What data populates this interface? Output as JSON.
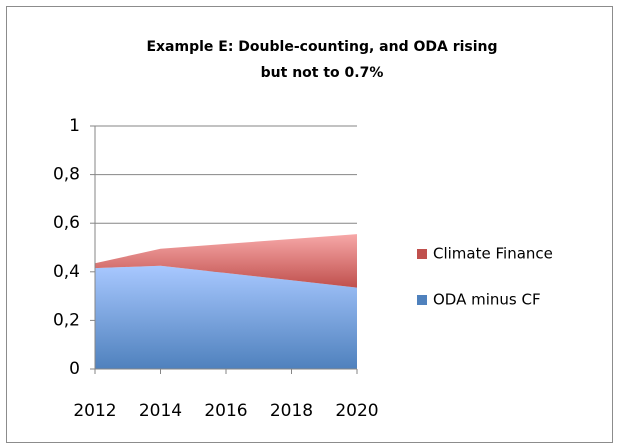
{
  "chart_data": {
    "type": "stacked_area",
    "title": "Example E: Double-counting, and ODA rising",
    "subtitle": "but not to 0.7%",
    "categories": [
      "2012",
      "2014",
      "2016",
      "2018",
      "2020"
    ],
    "series": [
      {
        "name": "ODA minus CF",
        "color": "#4f81bd",
        "values": [
          0.415,
          0.425,
          0.395,
          0.365,
          0.335
        ]
      },
      {
        "name": "Climate Finance",
        "color": "#c0504d",
        "values": [
          0.02,
          0.07,
          0.12,
          0.17,
          0.22
        ]
      }
    ],
    "ylim": [
      0,
      1
    ],
    "yticks": [
      0,
      {
        "value": 0.2,
        "label": "0,2"
      },
      {
        "value": 0.4,
        "label": "0,4"
      },
      {
        "value": 0.6,
        "label": "0,6"
      },
      {
        "value": 0.8,
        "label": "0,8"
      },
      1
    ],
    "grid": true,
    "legend": "right"
  }
}
